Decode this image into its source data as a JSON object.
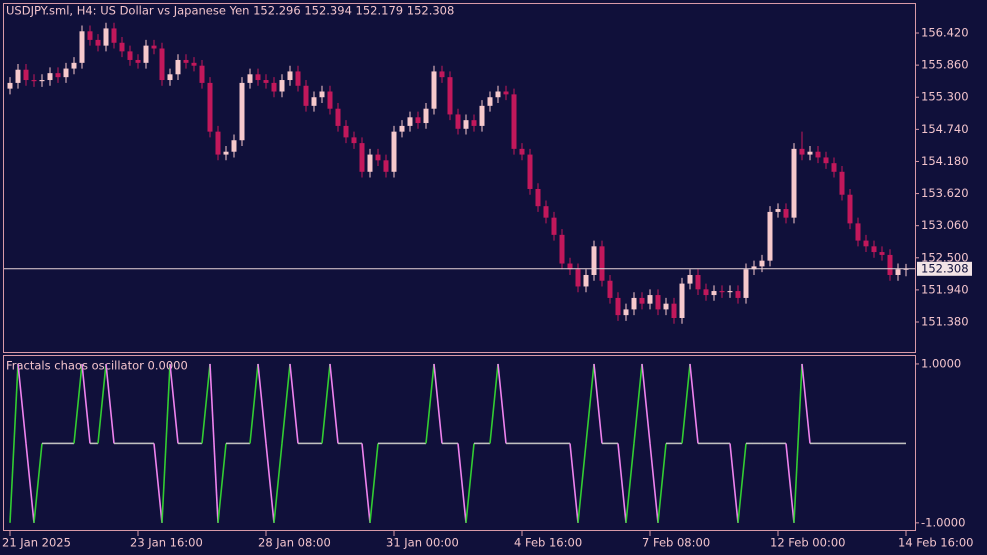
{
  "chart_data": [
    {
      "type": "candlestick",
      "title": "USDJPY.sml, H4:  US Dollar vs Japanese Yen  152.296 152.394 152.179 152.308",
      "ylim": [
        150.857,
        156.926
      ],
      "yticks": [
        {
          "value": 156.42,
          "label": "156.420"
        },
        {
          "value": 155.86,
          "label": "155.860"
        },
        {
          "value": 155.3,
          "label": "155.300"
        },
        {
          "value": 154.74,
          "label": "154.740"
        },
        {
          "value": 154.18,
          "label": "154.180"
        },
        {
          "value": 153.62,
          "label": "153.620"
        },
        {
          "value": 153.06,
          "label": "153.060"
        },
        {
          "value": 152.5,
          "label": "152.500"
        },
        {
          "value": 151.94,
          "label": "151.940"
        },
        {
          "value": 151.38,
          "label": "151.380"
        }
      ],
      "up_color": "#f6c9cc",
      "down_color": "#c2185b",
      "series": [
        {
          "open": [
            155.45,
            155.55,
            155.78,
            155.6,
            155.58,
            155.6,
            155.72,
            155.65,
            155.8,
            155.9,
            156.45,
            156.3,
            156.2,
            156.5,
            156.25,
            156.1,
            155.95,
            155.9,
            156.2,
            156.15,
            155.6,
            155.7,
            155.95,
            155.9,
            155.85,
            155.55,
            154.7,
            154.3,
            154.35,
            154.55,
            155.55,
            155.7,
            155.6,
            155.55,
            155.4,
            155.6,
            155.75,
            155.5,
            155.15,
            155.3,
            155.4,
            155.1,
            154.8,
            154.6,
            154.5,
            154.0,
            154.3,
            154.2,
            154.0,
            154.7,
            154.8,
            154.95,
            154.85,
            155.1,
            155.75,
            155.65,
            155.0,
            154.75,
            154.9,
            154.8,
            155.15,
            155.3,
            155.4,
            155.35,
            154.4,
            154.3,
            153.7,
            153.4,
            153.2,
            152.9,
            152.4,
            152.3,
            152.0,
            152.2,
            152.7,
            152.1,
            151.8,
            151.5,
            151.6,
            151.8,
            151.7,
            151.85,
            151.6,
            151.7,
            151.45,
            152.05,
            152.2,
            151.95,
            151.85,
            151.92,
            151.9,
            151.92,
            151.8,
            152.3,
            152.35,
            152.45,
            153.3,
            153.35,
            153.2,
            154.4,
            154.3,
            154.35,
            154.25,
            154.15,
            154.0,
            153.6,
            153.1,
            152.8,
            152.7,
            152.6,
            152.55,
            152.2,
            152.296
          ],
          "high": [
            155.65,
            155.88,
            155.88,
            155.7,
            155.7,
            155.82,
            155.82,
            155.9,
            156.0,
            156.55,
            156.55,
            156.4,
            156.6,
            156.6,
            156.35,
            156.2,
            156.05,
            156.3,
            156.3,
            156.25,
            155.8,
            156.05,
            156.05,
            156.0,
            155.95,
            155.65,
            154.8,
            154.45,
            154.65,
            155.65,
            155.8,
            155.8,
            155.7,
            155.65,
            155.7,
            155.85,
            155.85,
            155.6,
            155.4,
            155.5,
            155.5,
            155.2,
            154.9,
            154.7,
            154.6,
            154.4,
            154.4,
            154.3,
            154.8,
            154.9,
            155.05,
            155.05,
            155.2,
            155.85,
            155.85,
            155.75,
            155.1,
            155.0,
            155.0,
            155.25,
            155.4,
            155.5,
            155.5,
            155.45,
            154.5,
            154.4,
            153.8,
            153.5,
            153.3,
            153.0,
            152.5,
            152.4,
            152.3,
            152.8,
            152.8,
            152.2,
            151.9,
            151.7,
            151.9,
            151.9,
            151.95,
            151.95,
            151.8,
            151.8,
            152.15,
            152.3,
            152.3,
            152.05,
            152.02,
            152.02,
            152.02,
            152.02,
            152.4,
            152.45,
            152.55,
            153.4,
            153.45,
            153.45,
            154.5,
            154.7,
            154.45,
            154.45,
            154.35,
            154.25,
            154.1,
            153.7,
            153.2,
            152.9,
            152.8,
            152.7,
            152.65,
            152.4,
            152.394
          ],
          "low": [
            155.35,
            155.45,
            155.5,
            155.48,
            155.48,
            155.5,
            155.55,
            155.55,
            155.7,
            155.8,
            156.2,
            156.1,
            156.1,
            156.15,
            156.0,
            155.85,
            155.8,
            155.8,
            156.05,
            155.5,
            155.5,
            155.6,
            155.8,
            155.75,
            155.45,
            154.6,
            154.2,
            154.2,
            154.25,
            154.45,
            155.45,
            155.5,
            155.45,
            155.3,
            155.3,
            155.5,
            155.4,
            155.05,
            155.05,
            155.2,
            155.0,
            154.7,
            154.5,
            154.4,
            153.9,
            153.9,
            154.1,
            153.9,
            153.9,
            154.6,
            154.7,
            154.75,
            154.75,
            155.0,
            155.55,
            154.9,
            154.65,
            154.65,
            154.7,
            154.7,
            155.05,
            155.2,
            155.25,
            154.3,
            154.2,
            153.6,
            153.3,
            153.1,
            152.8,
            152.3,
            152.2,
            151.9,
            151.9,
            152.1,
            152.0,
            151.7,
            151.4,
            151.4,
            151.5,
            151.6,
            151.6,
            151.5,
            151.5,
            151.35,
            151.35,
            151.95,
            151.85,
            151.75,
            151.75,
            151.8,
            151.8,
            151.7,
            151.7,
            152.2,
            152.25,
            152.35,
            153.2,
            153.1,
            153.1,
            154.2,
            154.2,
            154.15,
            154.05,
            153.9,
            153.5,
            153.0,
            152.7,
            152.6,
            152.5,
            152.45,
            152.1,
            152.1,
            152.179
          ],
          "close": [
            155.55,
            155.78,
            155.6,
            155.58,
            155.6,
            155.72,
            155.65,
            155.8,
            155.9,
            156.45,
            156.3,
            156.2,
            156.5,
            156.25,
            156.1,
            155.95,
            155.9,
            156.2,
            156.15,
            155.6,
            155.7,
            155.95,
            155.9,
            155.85,
            155.55,
            154.7,
            154.3,
            154.35,
            154.55,
            155.55,
            155.7,
            155.6,
            155.55,
            155.4,
            155.6,
            155.75,
            155.5,
            155.15,
            155.3,
            155.4,
            155.1,
            154.8,
            154.6,
            154.5,
            154.0,
            154.3,
            154.2,
            154.0,
            154.7,
            154.8,
            154.95,
            154.85,
            155.1,
            155.75,
            155.65,
            155.0,
            154.75,
            154.9,
            154.8,
            155.15,
            155.3,
            155.4,
            155.35,
            154.4,
            154.3,
            153.7,
            153.4,
            153.2,
            152.9,
            152.4,
            152.3,
            152.0,
            152.2,
            152.7,
            152.1,
            151.8,
            151.5,
            151.6,
            151.8,
            151.7,
            151.85,
            151.6,
            151.7,
            151.45,
            152.05,
            152.2,
            151.95,
            151.85,
            151.92,
            151.9,
            151.92,
            151.8,
            152.3,
            152.35,
            152.45,
            153.3,
            153.35,
            153.2,
            154.4,
            154.3,
            154.35,
            154.25,
            154.15,
            154.0,
            153.6,
            153.1,
            152.8,
            152.7,
            152.6,
            152.55,
            152.2,
            152.3,
            152.308
          ]
        }
      ]
    },
    {
      "type": "line",
      "title": "Fractals chaos oscillator 0.0000",
      "ylim": [
        -1.09,
        1.1
      ],
      "yticks": [
        {
          "value": 1,
          "label": "1.0000"
        },
        {
          "value": -1,
          "label": "-1.0000"
        }
      ],
      "color": "#c0c0c0",
      "up_color": "#32cd32",
      "down_color": "#ee82ee",
      "categories": [
        "21 Jan 2025",
        null,
        null,
        null,
        null,
        null,
        null,
        null,
        null,
        null,
        null,
        null,
        null,
        null,
        null,
        null,
        "23 Jan 16:00",
        null,
        null,
        null,
        null,
        null,
        null,
        null,
        null,
        null,
        null,
        null,
        null,
        null,
        null,
        null,
        "28 Jan 08:00",
        null,
        null,
        null,
        null,
        null,
        null,
        null,
        null,
        null,
        null,
        null,
        null,
        null,
        null,
        null,
        "31 Jan 00:00",
        null,
        null,
        null,
        null,
        null,
        null,
        null,
        null,
        null,
        null,
        null,
        null,
        null,
        null,
        null,
        "4 Feb 16:00",
        null,
        null,
        null,
        null,
        null,
        null,
        null,
        null,
        null,
        null,
        null,
        null,
        null,
        null,
        null,
        "7 Feb 08:00",
        null,
        null,
        null,
        null,
        null,
        null,
        null,
        null,
        null,
        null,
        null,
        null,
        null,
        null,
        null,
        "12 Feb 00:00",
        null,
        null,
        null,
        null,
        null,
        null,
        null,
        null,
        null,
        null,
        null,
        null,
        null,
        null,
        null,
        "14 Feb 16:00"
      ],
      "values": [
        -1,
        1,
        0,
        -1,
        0,
        0,
        0,
        0,
        0,
        1,
        0,
        0,
        1,
        0,
        0,
        0,
        0,
        0,
        0,
        -1,
        1,
        0,
        0,
        0,
        0,
        1,
        -1,
        0,
        0,
        0,
        0,
        1,
        0,
        -1,
        0,
        1,
        0,
        0,
        0,
        0,
        1,
        0,
        0,
        0,
        0,
        -1,
        0,
        0,
        0,
        0,
        0,
        0,
        0,
        1,
        0,
        0,
        0,
        -1,
        0,
        0,
        0,
        1,
        0,
        0,
        0,
        0,
        0,
        0,
        0,
        0,
        0,
        -1,
        0,
        1,
        0,
        0,
        0,
        -1,
        0,
        1,
        0,
        -1,
        0,
        0,
        0,
        1,
        0,
        0,
        0,
        0,
        0,
        -1,
        0,
        0,
        0,
        0,
        0,
        0,
        -1,
        1,
        0,
        0,
        0,
        0,
        0,
        0,
        0,
        0,
        0,
        0,
        0,
        0,
        0
      ]
    }
  ]
}
